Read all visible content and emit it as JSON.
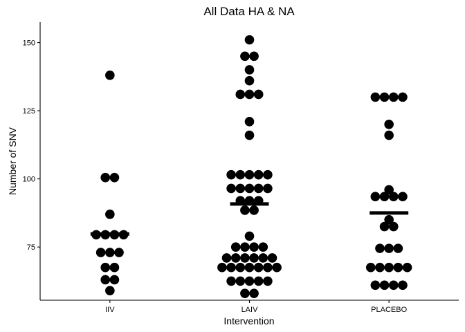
{
  "chart_data": {
    "type": "scatter",
    "style": "dotplot",
    "title": "All Data HA & NA",
    "xlabel": "Intervention",
    "ylabel": "Number of SNV",
    "categories": [
      "IIV",
      "LAIV",
      "PLACEBO"
    ],
    "yticks": [
      75,
      100,
      125,
      150
    ],
    "ylim": [
      55.5,
      157.5
    ],
    "grid": false,
    "legend": "none",
    "point_color": "#000000",
    "mean_bar_color": "#000000",
    "groups": [
      {
        "category": "IIV",
        "mean": 79.8,
        "rows": [
          {
            "y": 138,
            "n": 1
          },
          {
            "y": 100.5,
            "n": 2
          },
          {
            "y": 87,
            "n": 1
          },
          {
            "y": 79.5,
            "n": 4
          },
          {
            "y": 73,
            "n": 3
          },
          {
            "y": 67.5,
            "n": 2
          },
          {
            "y": 63,
            "n": 2
          },
          {
            "y": 59,
            "n": 1
          }
        ]
      },
      {
        "category": "LAIV",
        "mean": 90.8,
        "rows": [
          {
            "y": 151,
            "n": 1
          },
          {
            "y": 145,
            "n": 2
          },
          {
            "y": 140,
            "n": 1
          },
          {
            "y": 136,
            "n": 1
          },
          {
            "y": 131,
            "n": 3
          },
          {
            "y": 121,
            "n": 1
          },
          {
            "y": 116,
            "n": 1
          },
          {
            "y": 101.5,
            "n": 5
          },
          {
            "y": 96.5,
            "n": 5
          },
          {
            "y": 92,
            "n": 3
          },
          {
            "y": 88.5,
            "n": 2
          },
          {
            "y": 79,
            "n": 1
          },
          {
            "y": 75,
            "n": 4
          },
          {
            "y": 71,
            "n": 6
          },
          {
            "y": 67.5,
            "n": 7
          },
          {
            "y": 62.5,
            "n": 5
          },
          {
            "y": 58,
            "n": 2
          }
        ]
      },
      {
        "category": "PLACEBO",
        "mean": 87.5,
        "rows": [
          {
            "y": 130,
            "n": 4
          },
          {
            "y": 120,
            "n": 1
          },
          {
            "y": 116,
            "n": 1
          },
          {
            "y": 96,
            "n": 1
          },
          {
            "y": 93.5,
            "n": 4
          },
          {
            "y": 85,
            "n": 1
          },
          {
            "y": 82.5,
            "n": 2
          },
          {
            "y": 74.5,
            "n": 3
          },
          {
            "y": 67.5,
            "n": 5
          },
          {
            "y": 61,
            "n": 4
          }
        ]
      }
    ]
  }
}
